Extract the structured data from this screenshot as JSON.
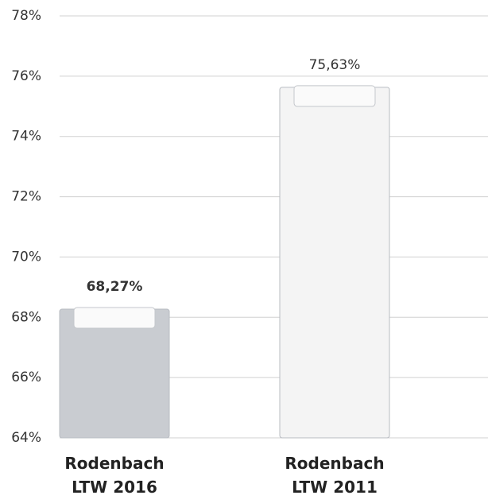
{
  "chart_data": {
    "type": "bar",
    "categories": [
      "Rodenbach\nLTW 2016",
      "Rodenbach\nLTW 2011"
    ],
    "values": [
      68.27,
      75.63
    ],
    "value_labels": [
      "68,27%",
      "75,63%"
    ],
    "colors": [
      "#c9ccd1",
      "#f4f4f4"
    ],
    "ylim": [
      64,
      78
    ],
    "yticks": [
      {
        "value": 64,
        "label": "64%"
      },
      {
        "value": 66,
        "label": "66%"
      },
      {
        "value": 68,
        "label": "68%"
      },
      {
        "value": 70,
        "label": "70%"
      },
      {
        "value": 72,
        "label": "72%"
      },
      {
        "value": 74,
        "label": "74%"
      },
      {
        "value": 76,
        "label": "76%"
      },
      {
        "value": 78,
        "label": "78%"
      }
    ],
    "grid": true
  }
}
